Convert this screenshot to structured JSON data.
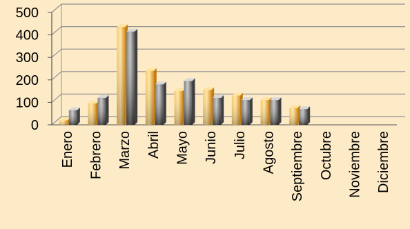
{
  "chart_data": {
    "type": "bar",
    "categories": [
      "Enero",
      "Febrero",
      "Marzo",
      "Abril",
      "Mayo",
      "Junio",
      "Julio",
      "Agosto",
      "Septiembre",
      "Octubre",
      "Noviembre",
      "Diciembre"
    ],
    "series": [
      {
        "values": [
          20,
          95,
          435,
          240,
          150,
          155,
          130,
          110,
          75,
          0,
          0,
          0
        ]
      },
      {
        "values": [
          65,
          120,
          415,
          180,
          195,
          120,
          110,
          110,
          70,
          0,
          0,
          0
        ]
      }
    ],
    "ylim": [
      0,
      500
    ],
    "yticks": [
      "0",
      "100",
      "200",
      "300",
      "400",
      "500"
    ],
    "grid": true,
    "legend": "none",
    "style": "3d-bar",
    "colors": {
      "background": "#fdebc8",
      "series1": "#f5b13a",
      "series2": "#8d8d8d",
      "grid": "#8f8f8f"
    }
  }
}
